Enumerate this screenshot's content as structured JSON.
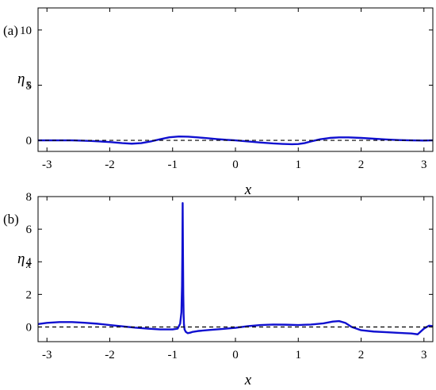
{
  "chart_data": [
    {
      "type": "line",
      "panel_label": "(a)",
      "xlabel": "x",
      "ylabel": "η",
      "ylabel_sub": "x",
      "xlim": [
        -3.14159,
        3.14159
      ],
      "ylim": [
        -1.0,
        12.0
      ],
      "xticks": [
        -3,
        -2,
        -1,
        0,
        1,
        2,
        3
      ],
      "xtick_labels": [
        "-3",
        "-2",
        "-1",
        "0",
        "1",
        "2",
        "3"
      ],
      "yticks": [
        0,
        5,
        10
      ],
      "ytick_labels": [
        "0",
        "5",
        "10"
      ],
      "grid": false,
      "series": [
        {
          "color": "#1010d0",
          "style": "solid",
          "x": [
            -3.14,
            -2.9,
            -2.6,
            -2.3,
            -2.0,
            -1.8,
            -1.65,
            -1.5,
            -1.35,
            -1.2,
            -1.05,
            -0.9,
            -0.75,
            -0.6,
            -0.45,
            -0.3,
            -0.15,
            0.0,
            0.2,
            0.4,
            0.6,
            0.75,
            0.9,
            1.0,
            1.1,
            1.2,
            1.35,
            1.5,
            1.65,
            1.8,
            2.0,
            2.2,
            2.4,
            2.6,
            2.8,
            3.0,
            3.14
          ],
          "y": [
            0.0,
            0.0,
            0.0,
            -0.05,
            -0.15,
            -0.25,
            -0.3,
            -0.25,
            -0.1,
            0.1,
            0.28,
            0.35,
            0.33,
            0.27,
            0.2,
            0.12,
            0.05,
            0.0,
            -0.1,
            -0.2,
            -0.28,
            -0.32,
            -0.35,
            -0.33,
            -0.25,
            -0.1,
            0.1,
            0.22,
            0.27,
            0.27,
            0.22,
            0.15,
            0.08,
            0.03,
            0.0,
            -0.02,
            0.0
          ]
        },
        {
          "color": "#000000",
          "style": "dashed",
          "x": [
            -3.14159,
            3.14159
          ],
          "y": [
            0,
            0
          ]
        }
      ]
    },
    {
      "type": "line",
      "panel_label": "(b)",
      "xlabel": "x",
      "ylabel": "η",
      "ylabel_sub": "x",
      "xlim": [
        -3.14159,
        3.14159
      ],
      "ylim": [
        -0.9,
        8.0
      ],
      "xticks": [
        -3,
        -2,
        -1,
        0,
        1,
        2,
        3
      ],
      "xtick_labels": [
        "-3",
        "-2",
        "-1",
        "0",
        "1",
        "2",
        "3"
      ],
      "yticks": [
        0,
        2,
        4,
        6,
        8
      ],
      "ytick_labels": [
        "0",
        "2",
        "4",
        "6",
        "8"
      ],
      "grid": false,
      "series": [
        {
          "color": "#1010d0",
          "style": "solid",
          "x": [
            -3.14,
            -3.0,
            -2.8,
            -2.6,
            -2.4,
            -2.2,
            -2.0,
            -1.8,
            -1.6,
            -1.4,
            -1.2,
            -1.0,
            -0.92,
            -0.88,
            -0.86,
            -0.85,
            -0.845,
            -0.84,
            -0.835,
            -0.83,
            -0.825,
            -0.82,
            -0.81,
            -0.79,
            -0.76,
            -0.72,
            -0.68,
            -0.6,
            -0.4,
            -0.2,
            0.0,
            0.2,
            0.4,
            0.6,
            0.8,
            1.0,
            1.2,
            1.4,
            1.55,
            1.65,
            1.75,
            1.85,
            2.0,
            2.2,
            2.4,
            2.6,
            2.8,
            2.9,
            3.0,
            3.08,
            3.14
          ],
          "y": [
            0.18,
            0.25,
            0.3,
            0.3,
            0.26,
            0.2,
            0.12,
            0.04,
            -0.04,
            -0.1,
            -0.15,
            -0.15,
            -0.1,
            0.2,
            0.9,
            2.5,
            4.5,
            7.6,
            4.5,
            2.0,
            0.8,
            0.2,
            -0.15,
            -0.3,
            -0.38,
            -0.35,
            -0.3,
            -0.25,
            -0.18,
            -0.12,
            -0.05,
            0.05,
            0.12,
            0.15,
            0.14,
            0.12,
            0.15,
            0.22,
            0.33,
            0.36,
            0.25,
            0.0,
            -0.2,
            -0.28,
            -0.32,
            -0.36,
            -0.4,
            -0.45,
            -0.1,
            0.08,
            0.05
          ]
        },
        {
          "color": "#000000",
          "style": "dashed",
          "x": [
            -3.14159,
            3.14159
          ],
          "y": [
            0,
            0
          ]
        }
      ]
    }
  ]
}
